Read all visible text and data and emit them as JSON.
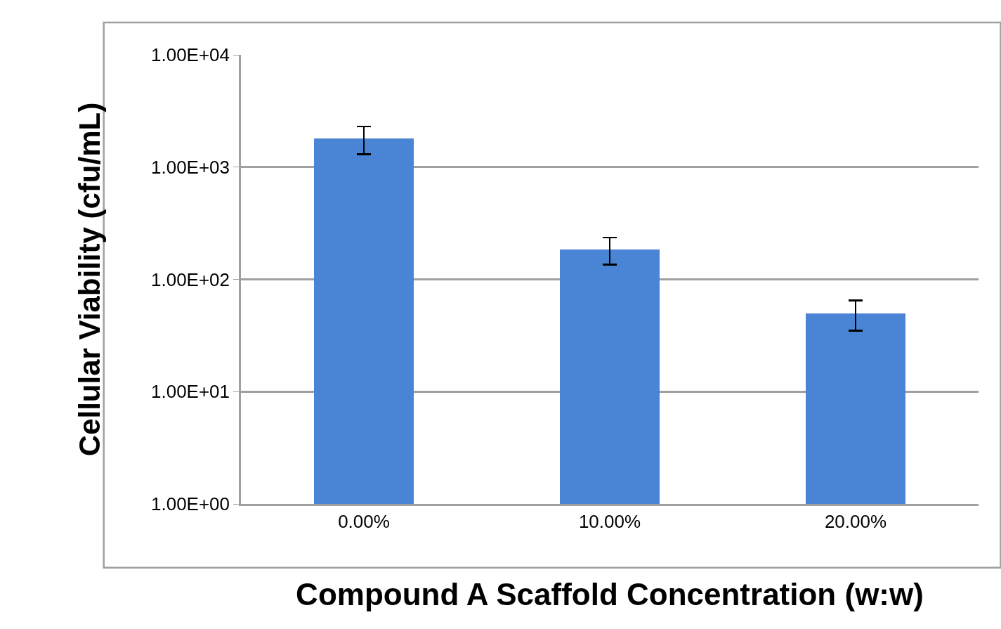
{
  "chart_data": {
    "type": "bar",
    "xlabel": "Compound A Scaffold Concentration (w:w)",
    "ylabel": "Cellular Viability (cfu/mL)",
    "categories": [
      "0.00%",
      "10.00%",
      "20.00%"
    ],
    "values": [
      1800,
      185,
      50
    ],
    "errors": [
      500,
      50,
      15
    ],
    "color": "#4a84d4",
    "log": true,
    "ylim": [
      1,
      10000
    ],
    "yticks": [
      {
        "value": 1,
        "label": "1.00E+00"
      },
      {
        "value": 10,
        "label": "1.00E+01"
      },
      {
        "value": 100,
        "label": "1.00E+02"
      },
      {
        "value": 1000,
        "label": "1.00E+03"
      },
      {
        "value": 10000,
        "label": "1.00E+04"
      }
    ],
    "grid": "y"
  }
}
